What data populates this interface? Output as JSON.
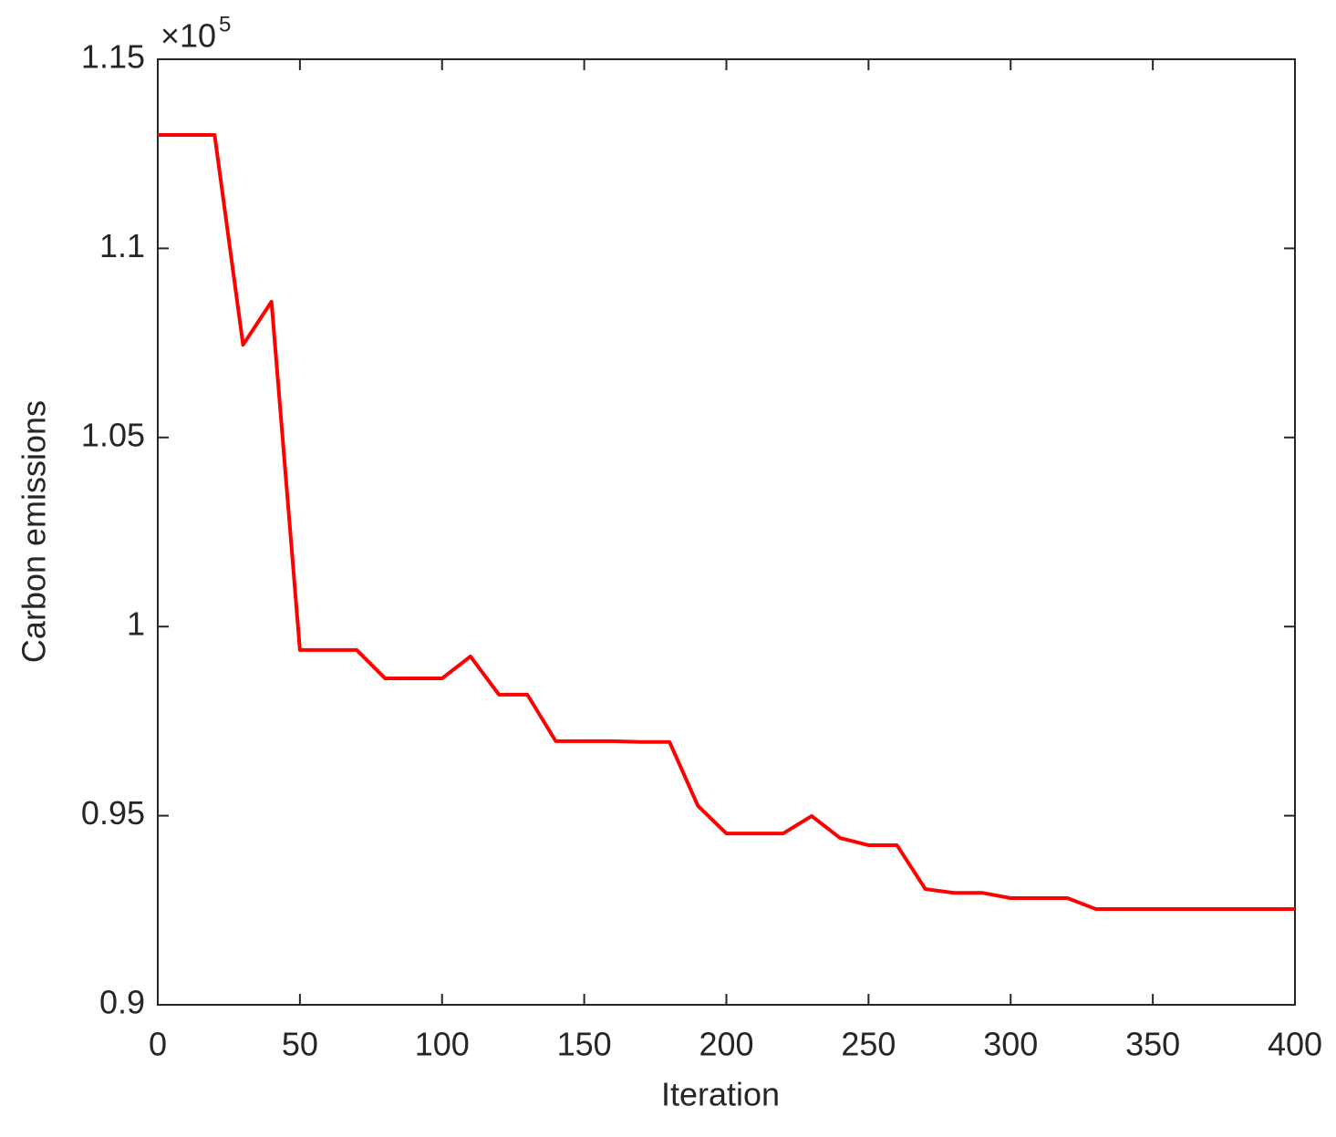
{
  "chart_data": {
    "type": "line",
    "x_label": "Iteration",
    "y_label": "Carbon emissions",
    "y_exponent_base": "×10",
    "y_exponent_power": "5",
    "xlim": [
      0,
      400
    ],
    "ylim": [
      0.9,
      1.15
    ],
    "xticks": [
      0,
      50,
      100,
      150,
      200,
      250,
      300,
      350,
      400
    ],
    "yticks": [
      0.9,
      0.95,
      1,
      1.05,
      1.1,
      1.15
    ],
    "box": true,
    "x": [
      0,
      10,
      20,
      30,
      40,
      50,
      60,
      70,
      80,
      90,
      100,
      110,
      120,
      130,
      140,
      150,
      160,
      170,
      180,
      190,
      200,
      210,
      220,
      230,
      240,
      250,
      260,
      270,
      280,
      290,
      300,
      310,
      320,
      330,
      340,
      350,
      360,
      370,
      380,
      390,
      400
    ],
    "series": [
      {
        "color": "#ff0000",
        "values": [
          1.13,
          1.13,
          1.13,
          1.0745,
          1.0859,
          0.9938,
          0.9938,
          0.9938,
          0.9863,
          0.9863,
          0.9863,
          0.9921,
          0.982,
          0.982,
          0.9697,
          0.9697,
          0.9697,
          0.9695,
          0.9695,
          0.9526,
          0.9453,
          0.9453,
          0.9453,
          0.9499,
          0.9441,
          0.9422,
          0.9422,
          0.9306,
          0.9296,
          0.9296,
          0.9282,
          0.9282,
          0.9282,
          0.9253,
          0.9253,
          0.9253,
          0.9253,
          0.9253,
          0.9253,
          0.9253,
          0.9253
        ]
      }
    ]
  }
}
